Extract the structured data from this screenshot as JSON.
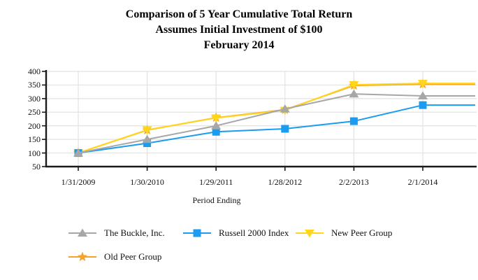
{
  "title": {
    "line1": "Comparison of 5 Year Cumulative Total Return",
    "line2": "Assumes Initial Investment of $100",
    "line3": "February 2014"
  },
  "chart_data": {
    "type": "line",
    "title": "Comparison of 5 Year Cumulative Total Return",
    "subtitle": "Assumes Initial Investment of $100 — February 2014",
    "xlabel": "Period Ending",
    "ylabel": "",
    "x_categories": [
      "1/31/2009",
      "1/30/2010",
      "1/29/2011",
      "1/28/2012",
      "2/2/2013",
      "2/1/2014"
    ],
    "ylim": [
      50,
      400
    ],
    "y_tick_step": 50,
    "y_ticks": [
      "400",
      "350",
      "300",
      "250",
      "200",
      "150",
      "100",
      "50"
    ],
    "grid": true,
    "legend_position": "bottom",
    "series": [
      {
        "name": "The Buckle, Inc.",
        "marker": "triangle-up",
        "color": "#a7a7a7",
        "values": [
          100,
          150,
          200,
          262,
          317,
          310
        ]
      },
      {
        "name": "Russell 2000 Index",
        "marker": "square",
        "color": "#1b9cf0",
        "values": [
          100,
          136,
          178,
          189,
          217,
          276
        ]
      },
      {
        "name": "New Peer Group",
        "marker": "triangle-down",
        "color": "#ffd61a",
        "values": [
          100,
          185,
          229,
          257,
          351,
          356
        ]
      },
      {
        "name": "Old Peer Group",
        "marker": "star",
        "color": "#f7a329",
        "values": [
          100,
          184,
          230,
          259,
          348,
          353
        ]
      }
    ]
  },
  "colors": {
    "background": "#ffffff",
    "axis": "#1a1a1a",
    "gridline": "#e2e2e2",
    "text": "#000000"
  }
}
